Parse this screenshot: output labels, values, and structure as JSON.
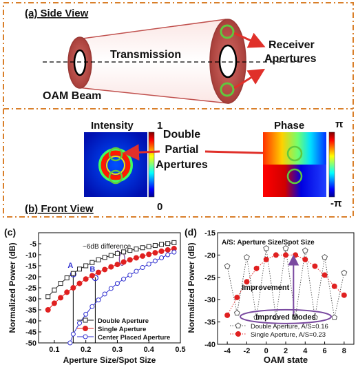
{
  "panel_a": {
    "label": "(a) Side View",
    "transmission": "Transmission",
    "beam_label": "OAM Beam",
    "receiver_line1": "Receiver",
    "receiver_line2": "Apertures"
  },
  "panel_b": {
    "label": "(b) Front View",
    "intensity_title": "Intensity",
    "intensity_max": "1",
    "intensity_min": "0",
    "phase_title": "Phase",
    "phase_max": "π",
    "phase_min": "-π",
    "center_line1": "Double",
    "center_line2": "Partial",
    "center_line3": "Apertures"
  },
  "colors": {
    "frame": "#d97f2a",
    "beam_red": "#c0504d",
    "arrow_red": "#e0302a",
    "aperture_green": "#5fc93e",
    "series_double": "#222222",
    "series_single": "#e02020",
    "series_center": "#2f2fd0",
    "oam_double": "#555555",
    "oam_single": "#e02020",
    "annotation_purple": "#7a4aa0"
  },
  "chart_data": [
    {
      "panel_label": "(c)",
      "type": "line",
      "xlabel": "Aperture Size/Spot Size",
      "ylabel": "Normalized Power (dB)",
      "xlim": [
        0.05,
        0.5
      ],
      "ylim": [
        -50,
        0
      ],
      "xticks": [
        "0.1",
        "0.2",
        "0.3",
        "0.4",
        "0.5"
      ],
      "yticks": [
        "-5",
        "-10",
        "-15",
        "-20",
        "-25",
        "-30",
        "-35",
        "-40",
        "-45",
        "-50"
      ],
      "ytick_values": [
        -5,
        -10,
        -15,
        -20,
        -25,
        -30,
        -35,
        -40,
        -45,
        -50
      ],
      "annotation": "~6dB difference",
      "point_labels": [
        "A",
        "B"
      ],
      "legend_position": "bottom-right",
      "series": [
        {
          "name": "Double Aperture",
          "marker": "square-open",
          "x": [
            0.08,
            0.1,
            0.12,
            0.14,
            0.16,
            0.18,
            0.2,
            0.22,
            0.24,
            0.26,
            0.28,
            0.3,
            0.32,
            0.34,
            0.36,
            0.38,
            0.4,
            0.42,
            0.44,
            0.46,
            0.48
          ],
          "y": [
            -29,
            -26,
            -23,
            -20.5,
            -18.5,
            -16.5,
            -15,
            -13.5,
            -12.3,
            -11.2,
            -10.3,
            -9.5,
            -8.7,
            -8,
            -7.4,
            -6.8,
            -6.3,
            -5.8,
            -5.3,
            -4.9,
            -4.5
          ]
        },
        {
          "name": "Single Aperture",
          "marker": "circle-filled",
          "x": [
            0.08,
            0.1,
            0.12,
            0.14,
            0.16,
            0.18,
            0.2,
            0.22,
            0.24,
            0.26,
            0.28,
            0.3,
            0.32,
            0.34,
            0.36,
            0.38,
            0.4,
            0.42,
            0.44,
            0.46,
            0.48
          ],
          "y": [
            -35,
            -32,
            -29.5,
            -27,
            -25,
            -23,
            -21,
            -19.5,
            -18,
            -16.7,
            -15.5,
            -14.4,
            -13.3,
            -12.3,
            -11.4,
            -10.6,
            -9.8,
            -9.1,
            -8.4,
            -7.8,
            -7.2
          ]
        },
        {
          "name": "Center Placed Aperture",
          "marker": "circle-open",
          "x": [
            0.15,
            0.16,
            0.18,
            0.2,
            0.22,
            0.24,
            0.26,
            0.28,
            0.3,
            0.32,
            0.34,
            0.36,
            0.38,
            0.4,
            0.42,
            0.44,
            0.46,
            0.48
          ],
          "y": [
            -50,
            -46,
            -41,
            -37,
            -33.5,
            -30.5,
            -27.8,
            -25.3,
            -23,
            -21,
            -19.2,
            -17.5,
            -15.8,
            -14.2,
            -12.8,
            -11.4,
            -10,
            -8.8
          ]
        }
      ]
    },
    {
      "panel_label": "(d)",
      "type": "line",
      "xlabel": "OAM state",
      "ylabel": "Normalized Power (dB)",
      "xlim": [
        -5,
        9
      ],
      "ylim": [
        -40,
        -15
      ],
      "xticks": [
        "-4",
        "-2",
        "0",
        "2",
        "4",
        "6",
        "8"
      ],
      "xtick_values": [
        -4,
        -2,
        0,
        2,
        4,
        6,
        8
      ],
      "yticks": [
        "-15",
        "-20",
        "-25",
        "-30",
        "-35",
        "-40"
      ],
      "ytick_values": [
        -15,
        -20,
        -25,
        -30,
        -35,
        -40
      ],
      "subtitle": "A/S: Aperture Size/Spot Size",
      "annotation_improvement": "Improvement",
      "annotation_modes": "Improved Modes",
      "legend_position": "bottom",
      "series": [
        {
          "name": "Double Aperture, A/S=0.16",
          "marker": "pentagon-open",
          "linestyle": "dotted",
          "x": [
            -4,
            -3,
            -2,
            -1,
            0,
            1,
            2,
            3,
            4,
            5,
            6,
            7,
            8
          ],
          "y": [
            -22.5,
            -33,
            -20.5,
            -34,
            -18.5,
            -34,
            -18.5,
            -34,
            -19,
            -34,
            -20.5,
            -34,
            -24
          ]
        },
        {
          "name": "Single Aperture, A/S=0.23",
          "marker": "circle-filled",
          "x": [
            -4,
            -3,
            -2,
            -1,
            0,
            1,
            2,
            3,
            4,
            5,
            6,
            7,
            8
          ],
          "y": [
            -33.5,
            -29.5,
            -26,
            -23,
            -21,
            -20,
            -20,
            -20,
            -21,
            -22.5,
            -24.5,
            -27,
            -29
          ]
        }
      ]
    }
  ]
}
